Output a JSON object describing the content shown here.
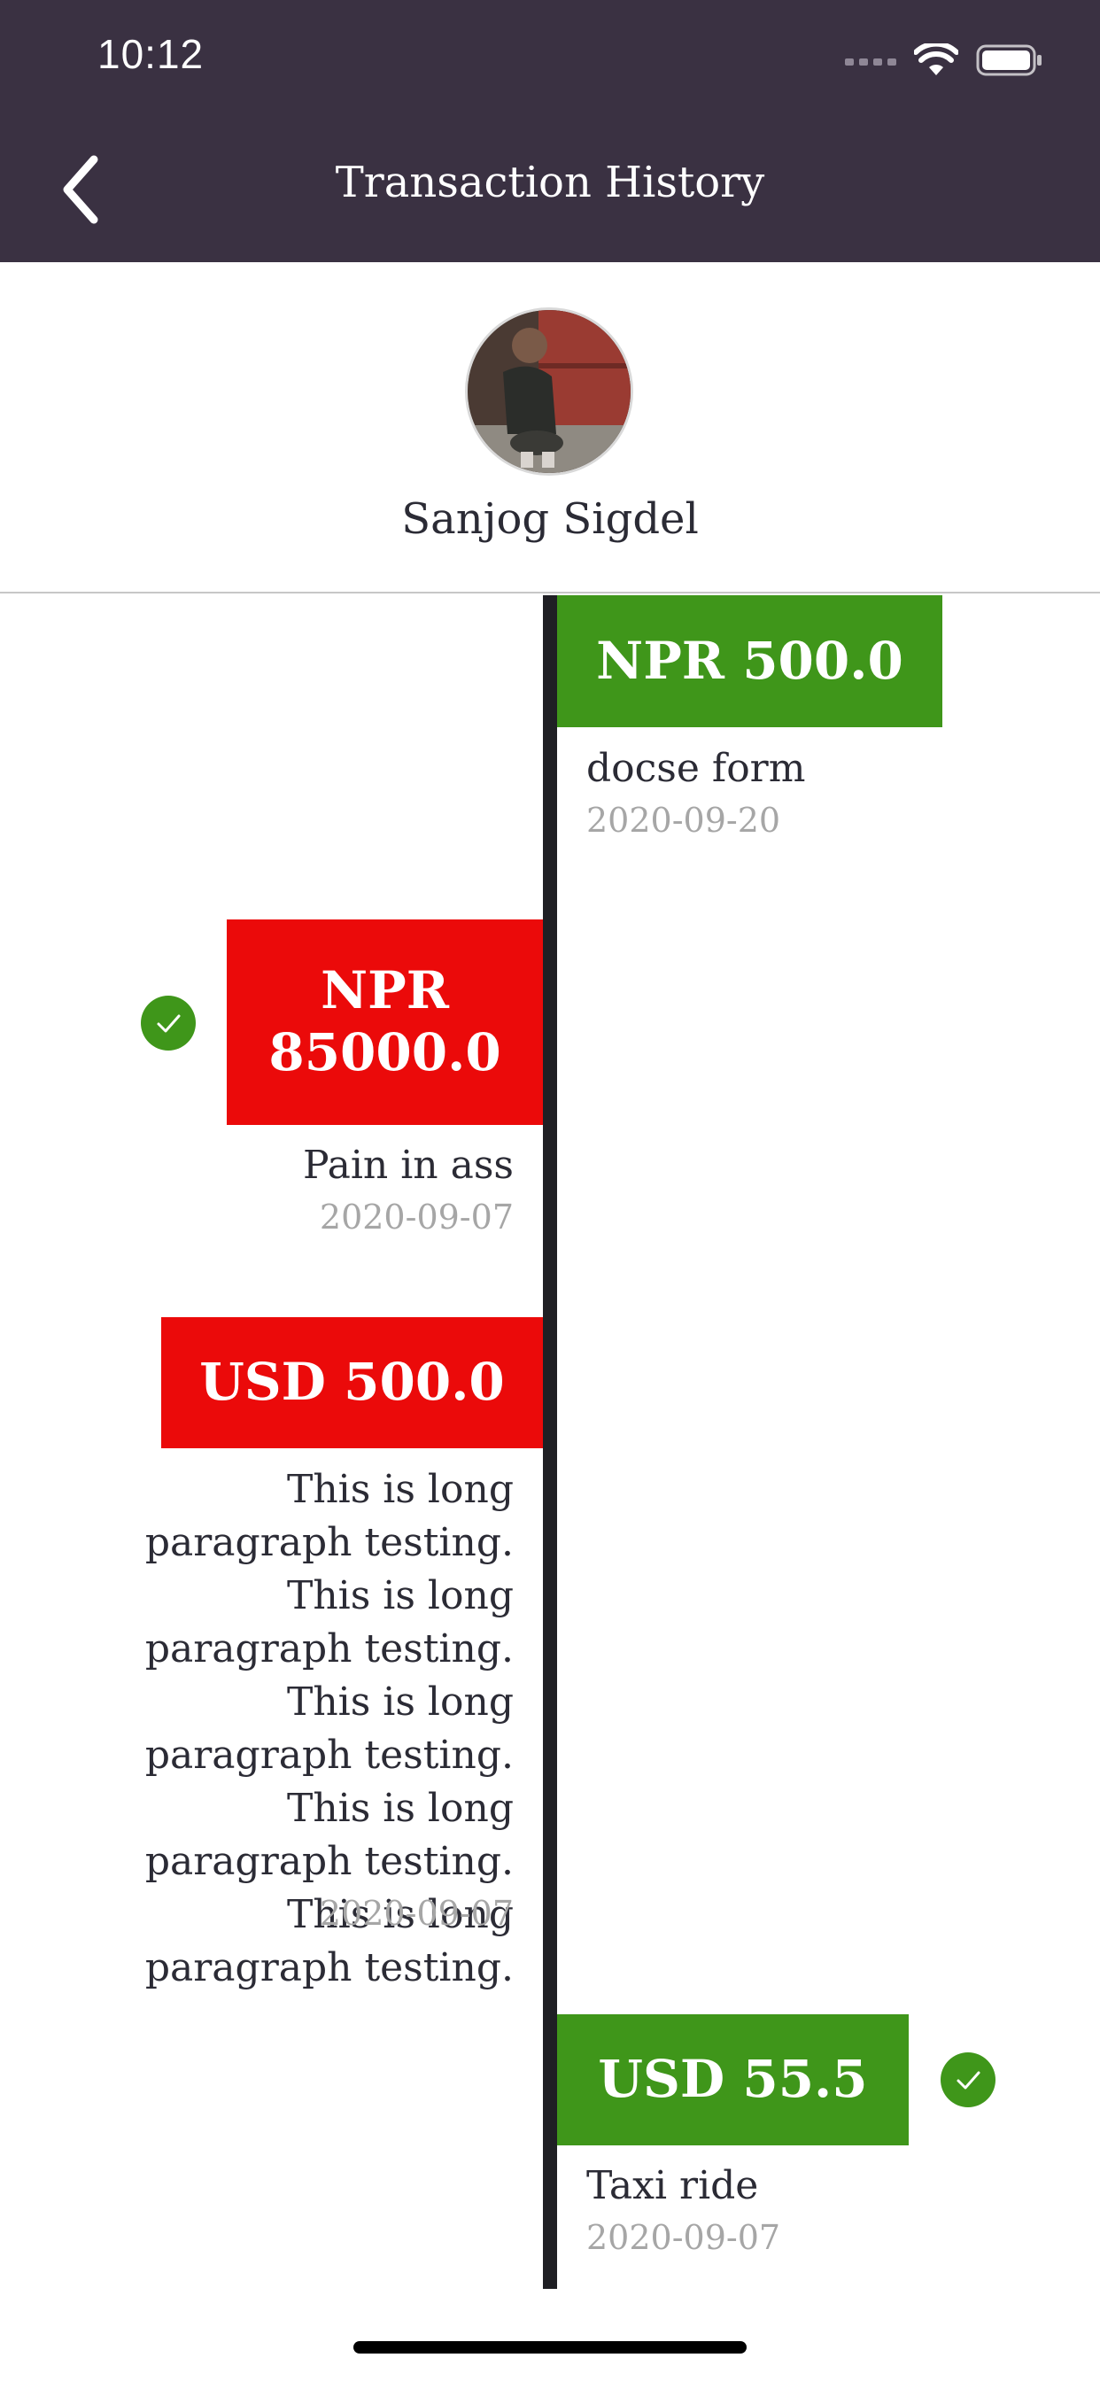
{
  "status_bar": {
    "time": "10:12",
    "icons": [
      "signal-icon",
      "wifi-icon",
      "battery-icon"
    ]
  },
  "nav": {
    "title": "Transaction History",
    "back_icon": "chevron-left-icon"
  },
  "profile": {
    "name": "Sanjog Sigdel"
  },
  "colors": {
    "header": "#3a3142",
    "credit": "#3f961a",
    "debit": "#eb0a0a",
    "timeline": "#1f1f24"
  },
  "transactions": [
    {
      "amount": "NPR 500.0",
      "description": "docse form",
      "date": "2020-09-20",
      "side": "right",
      "type": "credit",
      "verified": false
    },
    {
      "amount": "NPR 85000.0",
      "description": "Pain in ass",
      "date": "2020-09-07",
      "side": "left",
      "type": "debit",
      "verified": true
    },
    {
      "amount": "USD 500.0",
      "description": "This is long paragraph testing. This is long paragraph testing. This is long paragraph testing. This is long paragraph testing. This is long paragraph testing.",
      "date": "2020-09-07",
      "side": "left",
      "type": "debit",
      "verified": false
    },
    {
      "amount": "USD 55.5",
      "description": "Taxi ride",
      "date": "2020-09-07",
      "side": "right",
      "type": "credit",
      "verified": true
    }
  ]
}
